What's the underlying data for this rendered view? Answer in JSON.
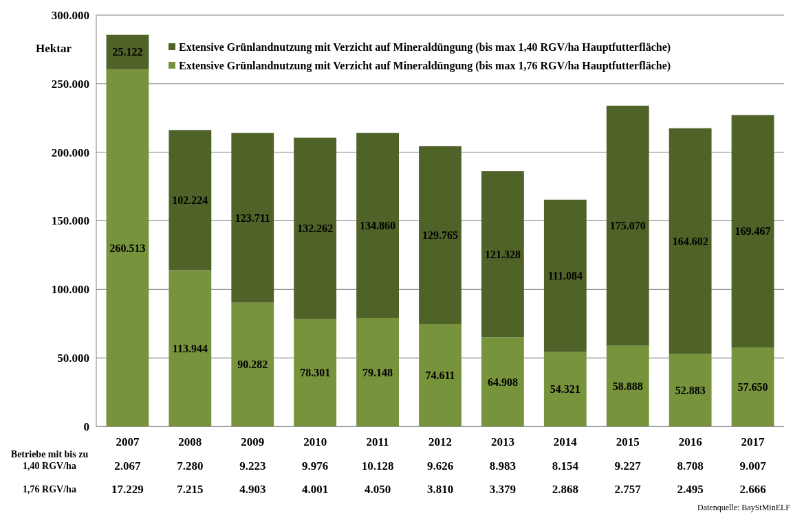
{
  "chart_data": {
    "type": "bar",
    "stacked": true,
    "ylabel": "Hektar",
    "categories": [
      "2007",
      "2008",
      "2009",
      "2010",
      "2011",
      "2012",
      "2013",
      "2014",
      "2015",
      "2016",
      "2017"
    ],
    "series": [
      {
        "name": "Extensive Grünlandnutzung mit Verzicht auf Mineraldüngung (bis max 1,76 RGV/ha Hauptfutterfläche)",
        "color": "#77933c",
        "values": [
          260513,
          113944,
          90282,
          78301,
          79148,
          74611,
          64908,
          54321,
          58888,
          52883,
          57650
        ],
        "value_labels": [
          "260.513",
          "113.944",
          "90.282",
          "78.301",
          "79.148",
          "74.611",
          "64.908",
          "54.321",
          "58.888",
          "52.883",
          "57.650"
        ]
      },
      {
        "name": "Extensive Grünlandnutzung mit Verzicht auf Mineraldüngung (bis max 1,40 RGV/ha Hauptfutterfläche)",
        "color": "#4f6228",
        "values": [
          25122,
          102224,
          123711,
          132262,
          134860,
          129765,
          121328,
          111084,
          175070,
          164602,
          169467
        ],
        "value_labels": [
          "25.122",
          "102.224",
          "123.711",
          "132.262",
          "134.860",
          "129.765",
          "121.328",
          "111.084",
          "175.070",
          "164.602",
          "169.467"
        ]
      }
    ],
    "ylim": [
      0,
      300000
    ],
    "yticks": [
      {
        "value": 0,
        "label": "0"
      },
      {
        "value": 50000,
        "label": "50.000"
      },
      {
        "value": 100000,
        "label": "100.000"
      },
      {
        "value": 150000,
        "label": "150.000"
      },
      {
        "value": 200000,
        "label": "200.000"
      },
      {
        "value": 250000,
        "label": "250.000"
      },
      {
        "value": 300000,
        "label": "300.000"
      }
    ],
    "grid": "y",
    "legend": "top right",
    "annotations": [
      "Betriebe mit bis zu",
      "1,40 RGV/ha",
      "1,76 RGV/ha",
      "2.067",
      "7.280",
      "9.223",
      "9.976",
      "10.128",
      "9.626",
      "8.983",
      "8.154",
      "9.227",
      "8.708",
      "9.007",
      "17.229",
      "7.215",
      "4.903",
      "4.001",
      "4.050",
      "3.810",
      "3.379",
      "2.868",
      "2.757",
      "2.495",
      "2.666",
      "Datenquelle: BayStMinELF"
    ]
  }
}
